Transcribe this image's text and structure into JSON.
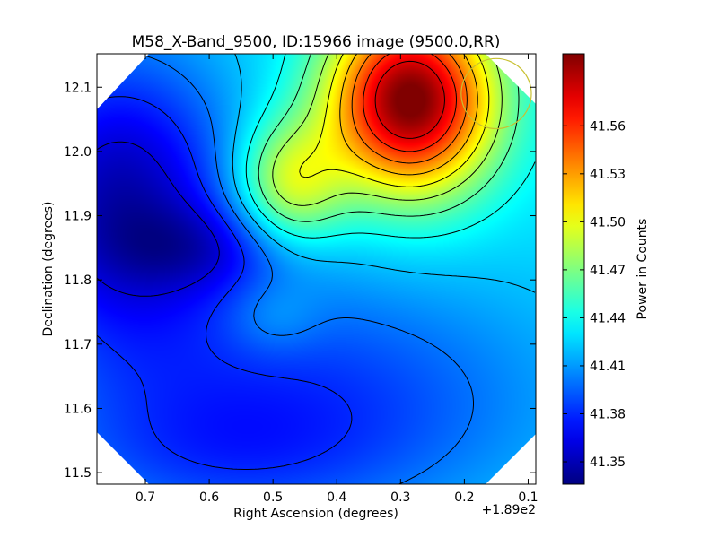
{
  "chart_data": {
    "type": "heatmap",
    "title": "M58_X-Band_9500, ID:15966 image (9500.0,RR)",
    "xlabel": "Right Ascension (degrees)",
    "ylabel": "Declination (degrees)",
    "x_offset_label": "+1.89e2",
    "xlim": [
      0.776,
      0.088
    ],
    "ylim": [
      11.482,
      12.152
    ],
    "x_ticks": [
      {
        "value": 0.7,
        "label": "0.7"
      },
      {
        "value": 0.6,
        "label": "0.6"
      },
      {
        "value": 0.5,
        "label": "0.5"
      },
      {
        "value": 0.4,
        "label": "0.4"
      },
      {
        "value": 0.3,
        "label": "0.3"
      },
      {
        "value": 0.2,
        "label": "0.2"
      },
      {
        "value": 0.1,
        "label": "0.1"
      }
    ],
    "y_ticks": [
      {
        "value": 11.5,
        "label": "11.5"
      },
      {
        "value": 11.6,
        "label": "11.6"
      },
      {
        "value": 11.7,
        "label": "11.7"
      },
      {
        "value": 11.8,
        "label": "11.8"
      },
      {
        "value": 11.9,
        "label": "11.9"
      },
      {
        "value": 12.0,
        "label": "12.0"
      },
      {
        "value": 12.1,
        "label": "12.1"
      }
    ],
    "colorbar": {
      "label": "Power in Counts",
      "range": [
        41.336,
        41.605
      ],
      "colormap": "jet",
      "ticks": [
        {
          "value": 41.35,
          "label": "41.35"
        },
        {
          "value": 41.38,
          "label": "41.38"
        },
        {
          "value": 41.41,
          "label": "41.41"
        },
        {
          "value": 41.44,
          "label": "41.44"
        },
        {
          "value": 41.47,
          "label": "41.47"
        },
        {
          "value": 41.5,
          "label": "41.50"
        },
        {
          "value": 41.53,
          "label": "41.53"
        },
        {
          "value": 41.56,
          "label": "41.56"
        }
      ]
    },
    "field_components": {
      "baseline": 41.43,
      "features": [
        {
          "kind": "peak",
          "x": 0.285,
          "y": 12.08,
          "amplitude": 0.18,
          "sigma_x": 0.09,
          "sigma_y": 0.1
        },
        {
          "kind": "peak",
          "x": 0.475,
          "y": 11.95,
          "amplitude": 0.07,
          "sigma_x": 0.06,
          "sigma_y": 0.07
        },
        {
          "kind": "peak",
          "x": 0.5,
          "y": 11.74,
          "amplitude": 0.015,
          "sigma_x": 0.05,
          "sigma_y": 0.04
        },
        {
          "kind": "trough",
          "x": 0.74,
          "y": 11.93,
          "amplitude": -0.08,
          "sigma_x": 0.13,
          "sigma_y": 0.16
        },
        {
          "kind": "trough",
          "x": 0.6,
          "y": 11.85,
          "amplitude": -0.03,
          "sigma_x": 0.1,
          "sigma_y": 0.05
        },
        {
          "kind": "trough",
          "x": 0.45,
          "y": 11.62,
          "amplitude": -0.045,
          "sigma_x": 0.28,
          "sigma_y": 0.14
        },
        {
          "kind": "trough",
          "x": 0.6,
          "y": 11.52,
          "amplitude": -0.02,
          "sigma_x": 0.2,
          "sigma_y": 0.08
        }
      ],
      "contour_levels": [
        41.36,
        41.38,
        41.4,
        41.42,
        41.44,
        41.46,
        41.48,
        41.5,
        41.52,
        41.54,
        41.56,
        41.58
      ]
    },
    "beam_marker": {
      "x": 0.15,
      "y": 12.09,
      "radius_deg": 0.055,
      "color": "#c8c030"
    },
    "grid": false,
    "legend": "none"
  }
}
